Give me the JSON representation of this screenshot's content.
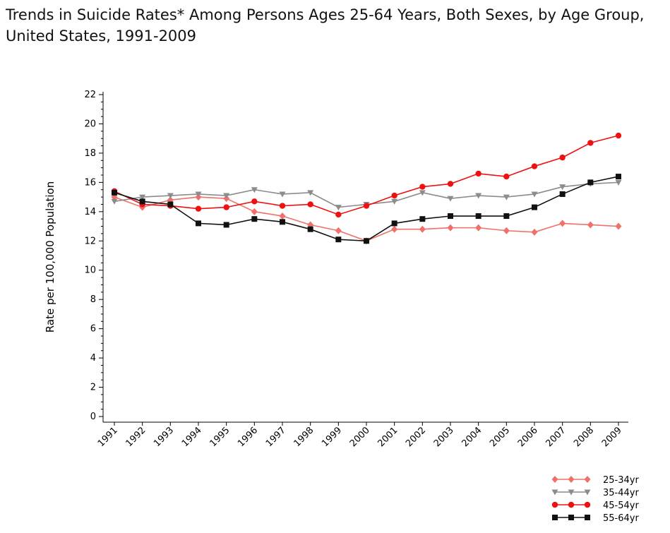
{
  "title": "Trends in Suicide Rates* Among Persons Ages 25-64 Years, Both Sexes, by Age Group, United States, 1991-2009",
  "chart_data": {
    "type": "line",
    "title": "Trends in Suicide Rates* Among Persons Ages 25-64 Years, Both Sexes, by Age Group, United States, 1991-2009",
    "xlabel": "",
    "ylabel": "Rate per 100,000 Population",
    "ylim": [
      0,
      22
    ],
    "yticks": [
      0,
      2,
      4,
      6,
      8,
      10,
      12,
      14,
      16,
      18,
      20,
      22
    ],
    "grid": false,
    "legend_position": "bottom-right",
    "categories": [
      "1991",
      "1992",
      "1993",
      "1994",
      "1995",
      "1996",
      "1997",
      "1998",
      "1999",
      "2000",
      "2001",
      "2002",
      "2003",
      "2004",
      "2005",
      "2006",
      "2007",
      "2008",
      "2009"
    ],
    "series": [
      {
        "name": "25-34yr",
        "color": "#f0706a",
        "marker": "diamond",
        "values": [
          15.0,
          14.3,
          14.8,
          15.0,
          14.9,
          14.0,
          13.7,
          13.1,
          12.7,
          12.0,
          12.8,
          12.8,
          12.9,
          12.9,
          12.7,
          12.6,
          13.2,
          13.1,
          13.0
        ]
      },
      {
        "name": "35-44yr",
        "color": "#8c8c8c",
        "marker": "triangle-down",
        "values": [
          14.7,
          15.0,
          15.1,
          15.2,
          15.1,
          15.5,
          15.2,
          15.3,
          14.3,
          14.5,
          14.7,
          15.3,
          14.9,
          15.1,
          15.0,
          15.2,
          15.7,
          15.9,
          16.0
        ]
      },
      {
        "name": "45-54yr",
        "color": "#ee1111",
        "marker": "circle",
        "values": [
          15.4,
          14.5,
          14.4,
          14.2,
          14.3,
          14.7,
          14.4,
          14.5,
          13.8,
          14.4,
          15.1,
          15.7,
          15.9,
          16.6,
          16.4,
          17.1,
          17.7,
          18.7,
          19.2
        ]
      },
      {
        "name": "55-64yr",
        "color": "#111111",
        "marker": "square",
        "values": [
          15.3,
          14.7,
          14.5,
          13.2,
          13.1,
          13.5,
          13.3,
          12.8,
          12.1,
          12.0,
          13.2,
          13.5,
          13.7,
          13.7,
          13.7,
          14.3,
          15.2,
          16.0,
          16.4
        ]
      }
    ]
  }
}
